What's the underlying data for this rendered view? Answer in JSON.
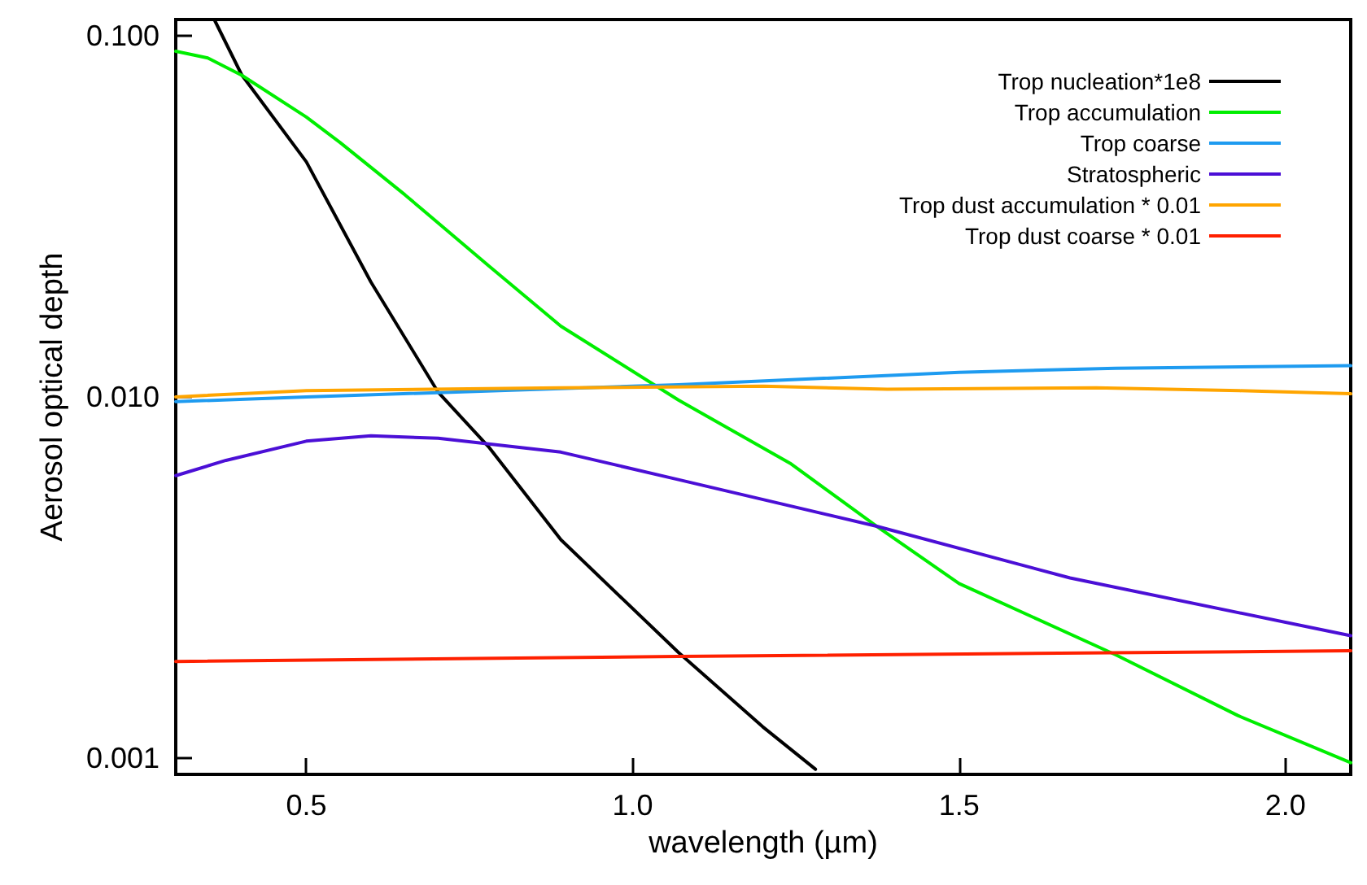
{
  "chart_data": {
    "type": "line",
    "xlabel": "wavelength (µm)",
    "ylabel": "Aerosol optical depth",
    "log": "y",
    "grid": false,
    "legend": "top right",
    "marker": "none",
    "line_style": "solid",
    "xlim": [
      0.3,
      2.1
    ],
    "xticks": [
      0.5,
      {
        "value": 1,
        "label": "1.0"
      },
      1.5,
      {
        "value": 2,
        "label": "2.0"
      }
    ],
    "ylim": [
      0.0009,
      0.111
    ],
    "yticks": [
      {
        "value": 0.001,
        "label": "0.001"
      },
      {
        "value": 0.01,
        "label": "0.010"
      },
      {
        "value": 0.1,
        "label": "0.100"
      }
    ],
    "series": [
      {
        "name": "Trop nucleation*1e8",
        "color": "#000000",
        "x": [
          0.359,
          0.401,
          0.5,
          0.599,
          0.702,
          0.779,
          0.89,
          1.07,
          1.199,
          1.28
        ],
        "values": [
          0.111,
          0.078,
          0.0448,
          0.0208,
          0.0103,
          0.00728,
          0.00402,
          0.00196,
          0.00122,
          0.00093
        ]
      },
      {
        "name": "Trop accumulation",
        "color": "#00ee00",
        "x": [
          0.3,
          0.349,
          0.401,
          0.5,
          0.552,
          0.651,
          0.779,
          0.89,
          1.07,
          1.241,
          1.374,
          1.5,
          1.74,
          1.927,
          2.1
        ],
        "values": [
          0.0907,
          0.0869,
          0.0778,
          0.0596,
          0.0506,
          0.0363,
          0.0231,
          0.0157,
          0.0098,
          0.00655,
          0.00438,
          0.00304,
          0.00193,
          0.00131,
          0.00097
        ]
      },
      {
        "name": "Trop coarse",
        "color": "#1e9bf0",
        "x": [
          0.3,
          0.5,
          1.0,
          1.07,
          1.5,
          1.74,
          2.1
        ],
        "values": [
          0.0097,
          0.01,
          0.0107,
          0.0108,
          0.0117,
          0.012,
          0.0122
        ]
      },
      {
        "name": "Stratospheric",
        "color": "#4b0fd6",
        "x": [
          0.3,
          0.377,
          0.5,
          0.599,
          0.702,
          0.89,
          1.07,
          1.374,
          1.67,
          2.1
        ],
        "values": [
          0.00605,
          0.00667,
          0.00754,
          0.0078,
          0.00768,
          0.00703,
          0.0059,
          0.00438,
          0.00315,
          0.00218
        ]
      },
      {
        "name": "Trop dust accumulation * 0.01",
        "color": "#ffa500",
        "x": [
          0.3,
          0.5,
          0.89,
          1.2,
          1.39,
          1.71,
          1.93,
          2.1
        ],
        "values": [
          0.01,
          0.0104,
          0.0106,
          0.0107,
          0.0105,
          0.0106,
          0.0104,
          0.0102
        ]
      },
      {
        "name": "Trop dust coarse * 0.01",
        "color": "#ff2000",
        "x": [
          0.3,
          1.07,
          2.1
        ],
        "values": [
          0.00185,
          0.00191,
          0.00198
        ]
      }
    ]
  }
}
